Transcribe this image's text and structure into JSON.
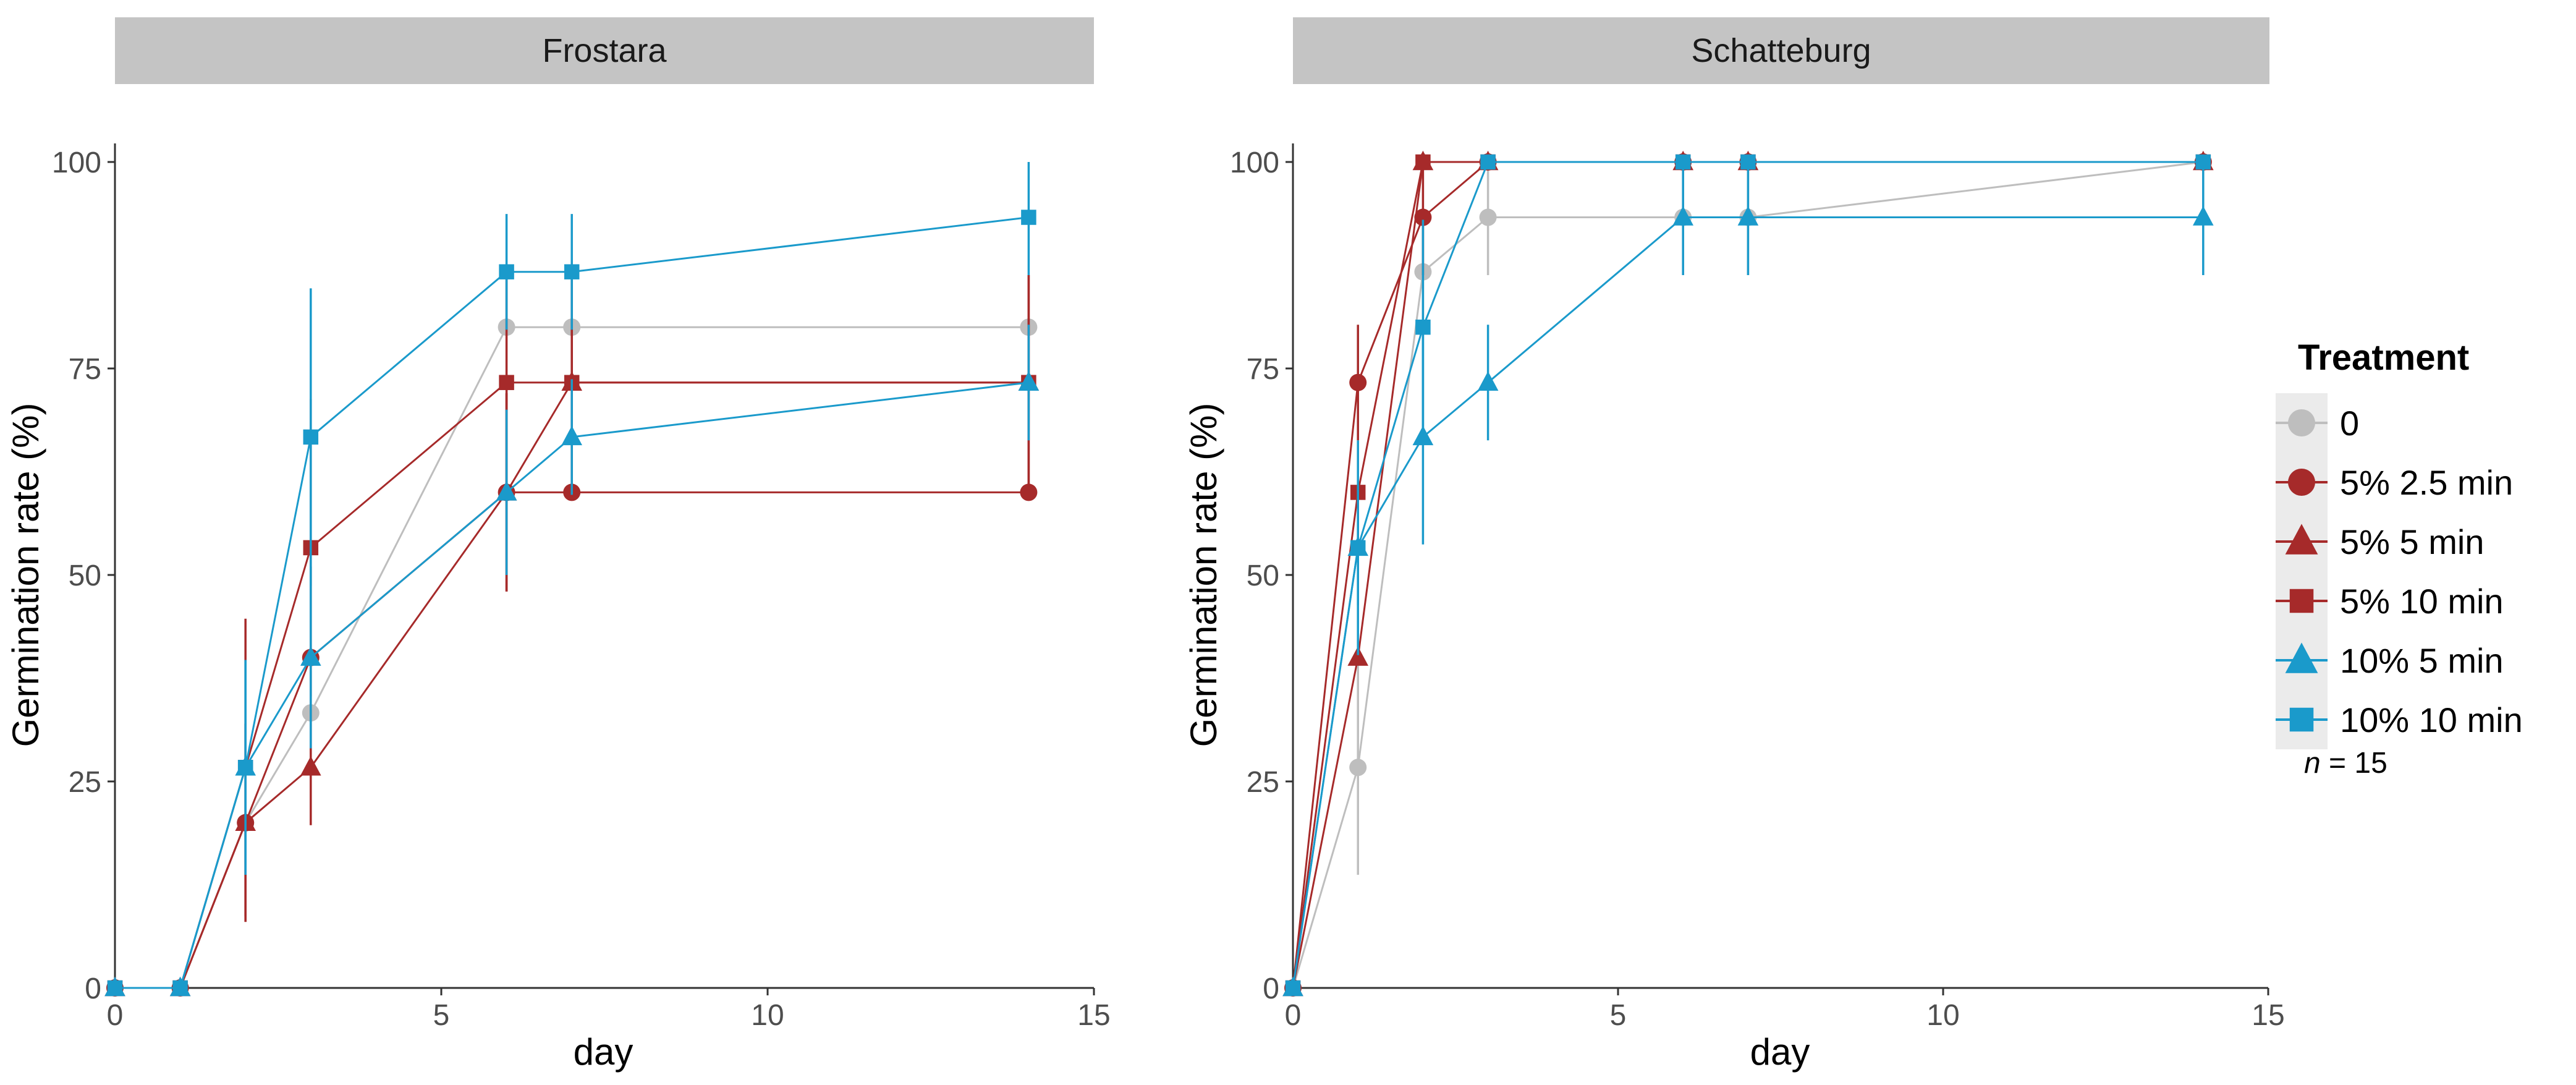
{
  "chart_data": [
    {
      "type": "line",
      "title": "Frostara",
      "xlabel": "day",
      "ylabel": "Germination rate (%)",
      "xlim": [
        0,
        15
      ],
      "ylim": [
        0,
        100
      ],
      "xticks": [
        0,
        5,
        10,
        15
      ],
      "yticks": [
        0,
        25,
        50,
        75,
        100
      ],
      "grid": false,
      "series": [
        {
          "name": "0",
          "x": [
            0,
            1,
            2,
            3,
            6,
            7,
            14
          ],
          "y": [
            0,
            0,
            20,
            33.3,
            80,
            80,
            80
          ],
          "err": [
            0,
            0,
            5,
            5,
            0,
            0,
            0
          ]
        },
        {
          "name": "5% 2.5 min",
          "x": [
            0,
            1,
            2,
            3,
            6,
            7,
            14
          ],
          "y": [
            0,
            0,
            20,
            40,
            60,
            60,
            60
          ],
          "err": [
            0,
            0,
            12,
            11,
            12,
            0,
            0
          ]
        },
        {
          "name": "5% 5 min",
          "x": [
            0,
            1,
            2,
            3,
            6,
            7,
            14
          ],
          "y": [
            0,
            0,
            20,
            26.7,
            60,
            73.3,
            73.3
          ],
          "err": [
            0,
            0,
            12,
            7,
            12,
            13,
            13
          ]
        },
        {
          "name": "5% 10 min",
          "x": [
            0,
            1,
            2,
            3,
            6,
            7,
            14
          ],
          "y": [
            0,
            0,
            26.7,
            53.3,
            73.3,
            73.3,
            73.3
          ],
          "err": [
            0,
            0,
            18,
            18,
            13,
            13,
            13
          ]
        },
        {
          "name": "10% 5 min",
          "x": [
            0,
            1,
            2,
            3,
            6,
            7,
            14
          ],
          "y": [
            0,
            0,
            26.7,
            40,
            60,
            66.7,
            73.3
          ],
          "err": [
            0,
            0,
            13,
            11,
            10,
            7,
            7
          ]
        },
        {
          "name": "10% 10 min",
          "x": [
            0,
            1,
            2,
            3,
            6,
            7,
            14
          ],
          "y": [
            0,
            0,
            26.7,
            66.7,
            86.7,
            86.7,
            93.3
          ],
          "err": [
            0,
            0,
            13,
            18,
            7,
            7,
            7
          ]
        }
      ]
    },
    {
      "type": "line",
      "title": "Schatteburg",
      "xlabel": "day",
      "ylabel": "Germination rate (%)",
      "xlim": [
        0,
        15
      ],
      "ylim": [
        0,
        100
      ],
      "xticks": [
        0,
        5,
        10,
        15
      ],
      "yticks": [
        0,
        25,
        50,
        75,
        100
      ],
      "grid": false,
      "series": [
        {
          "name": "0",
          "x": [
            0,
            1,
            2,
            3,
            6,
            7,
            14
          ],
          "y": [
            0,
            26.7,
            86.7,
            93.3,
            93.3,
            93.3,
            100
          ],
          "err": [
            0,
            13,
            7,
            7,
            7,
            7,
            0
          ]
        },
        {
          "name": "5% 2.5 min",
          "x": [
            0,
            1,
            2,
            3,
            6,
            7,
            14
          ],
          "y": [
            0,
            73.3,
            93.3,
            100,
            100,
            100,
            100
          ],
          "err": [
            0,
            7,
            7,
            0,
            0,
            0,
            0
          ]
        },
        {
          "name": "5% 5 min",
          "x": [
            0,
            1,
            2,
            3,
            6,
            7,
            14
          ],
          "y": [
            0,
            40,
            100,
            100,
            100,
            100,
            100
          ],
          "err": [
            0,
            0,
            0,
            0,
            0,
            0,
            0
          ]
        },
        {
          "name": "5% 10 min",
          "x": [
            0,
            1,
            2,
            3,
            6,
            7,
            14
          ],
          "y": [
            0,
            60,
            100,
            100,
            100,
            100,
            100
          ],
          "err": [
            0,
            0,
            0,
            0,
            0,
            0,
            0
          ]
        },
        {
          "name": "10% 5 min",
          "x": [
            0,
            1,
            2,
            3,
            6,
            7,
            14
          ],
          "y": [
            0,
            53.3,
            66.7,
            73.3,
            93.3,
            93.3,
            93.3
          ],
          "err": [
            0,
            7,
            13,
            7,
            7,
            7,
            7
          ]
        },
        {
          "name": "10% 10 min",
          "x": [
            0,
            1,
            2,
            3,
            6,
            7,
            14
          ],
          "y": [
            0,
            53.3,
            80,
            100,
            100,
            100,
            100
          ],
          "err": [
            0,
            13,
            13,
            0,
            0,
            0,
            0
          ]
        }
      ]
    }
  ],
  "legend": {
    "title": "Treatment",
    "placement": "right",
    "items": [
      {
        "label": "0",
        "color": "#BEBEBE",
        "shape": "circle"
      },
      {
        "label": "5% 2.5 min",
        "color": "#A62A2A",
        "shape": "circle"
      },
      {
        "label": "5% 5 min",
        "color": "#A62A2A",
        "shape": "triangle"
      },
      {
        "label": "5% 10 min",
        "color": "#A62A2A",
        "shape": "square"
      },
      {
        "label": "10% 5 min",
        "color": "#1A9ACB",
        "shape": "triangle"
      },
      {
        "label": "10% 10 min",
        "color": "#1A9ACB",
        "shape": "square"
      }
    ]
  },
  "note": {
    "n_symbol": "n",
    "n_text": " = 15"
  },
  "colors": {
    "strip_bg": "#C4C4C4",
    "axis": "#333333",
    "legend_key_bg": "#EBEBEB"
  }
}
